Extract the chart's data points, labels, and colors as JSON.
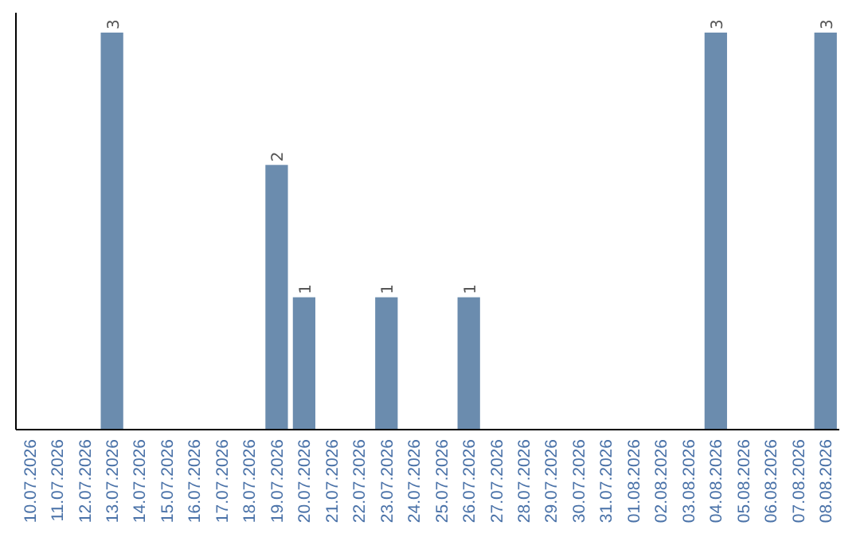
{
  "chart_data": {
    "type": "bar",
    "categories": [
      "10.07.2026",
      "11.07.2026",
      "12.07.2026",
      "13.07.2026",
      "14.07.2026",
      "15.07.2026",
      "16.07.2026",
      "17.07.2026",
      "18.07.2026",
      "19.07.2026",
      "20.07.2026",
      "21.07.2026",
      "22.07.2026",
      "23.07.2026",
      "24.07.2026",
      "25.07.2026",
      "26.07.2026",
      "27.07.2026",
      "28.07.2026",
      "29.07.2026",
      "30.07.2026",
      "31.07.2026",
      "01.08.2026",
      "02.08.2026",
      "03.08.2026",
      "04.08.2026",
      "05.08.2026",
      "06.08.2026",
      "07.08.2026",
      "08.08.2026"
    ],
    "values": [
      0,
      0,
      0,
      3,
      0,
      0,
      0,
      0,
      0,
      2,
      1,
      0,
      0,
      1,
      0,
      0,
      1,
      0,
      0,
      0,
      0,
      0,
      0,
      0,
      0,
      3,
      0,
      0,
      0,
      3
    ],
    "value_labels": [
      null,
      null,
      null,
      "3",
      null,
      null,
      null,
      null,
      null,
      "2",
      "1",
      null,
      null,
      "1",
      null,
      null,
      "1",
      null,
      null,
      null,
      null,
      null,
      null,
      null,
      null,
      "3",
      null,
      null,
      null,
      "3"
    ],
    "color": "#6b8cae",
    "ylim": [
      0,
      3.15
    ],
    "tick_labels": "x"
  }
}
